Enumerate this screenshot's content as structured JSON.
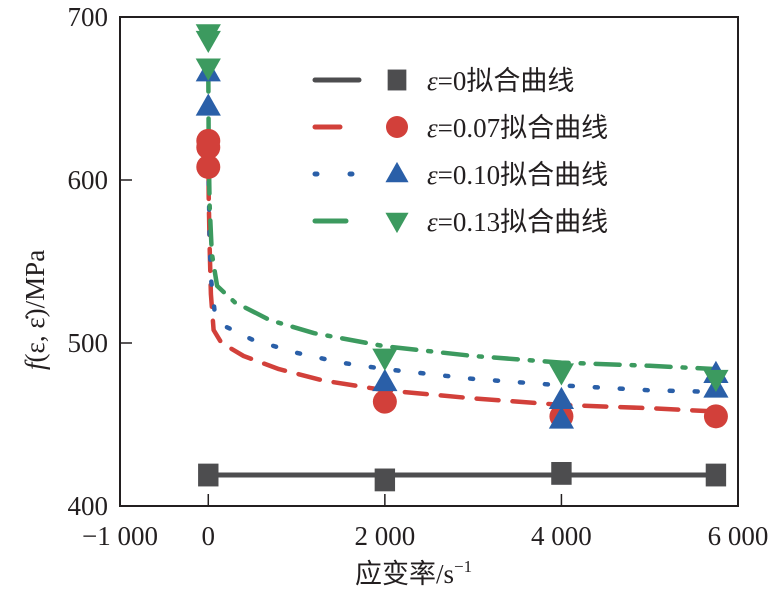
{
  "chart_data": {
    "type": "line",
    "title": "",
    "xlabel": "应变率/s",
    "xlabel_superscript": "−1",
    "ylabel_prefix": "f",
    "ylabel": "(ε, ε̇)/MPa",
    "xlim": [
      -1000,
      6000
    ],
    "ylim": [
      400,
      700
    ],
    "grid": false,
    "legend_position": "top-right",
    "x_ticks": [
      -1000,
      0,
      2000,
      4000,
      6000
    ],
    "x_tick_labels": [
      "−1 000",
      "0",
      "2 000",
      "4 000",
      "6 000"
    ],
    "y_ticks": [
      400,
      500,
      600,
      700
    ],
    "y_tick_labels": [
      "400",
      "500",
      "600",
      "700"
    ],
    "series": [
      {
        "name": "ε=0拟合曲线",
        "legend_label": "ε=0拟合曲线",
        "color": "#4d4d4f",
        "marker": "square",
        "line_style": "solid",
        "points": [
          [
            0,
            419
          ],
          [
            2000,
            416
          ],
          [
            4000,
            420
          ],
          [
            5750,
            419
          ]
        ],
        "fit": [
          [
            0,
            419
          ],
          [
            5750,
            419
          ]
        ]
      },
      {
        "name": "ε=0.07拟合曲线",
        "legend_label": "ε=0.07拟合曲线",
        "color": "#d2403a",
        "marker": "circle",
        "line_style": "dashed",
        "points": [
          [
            0,
            624
          ],
          [
            0,
            620
          ],
          [
            0,
            608
          ],
          [
            2000,
            464
          ],
          [
            4000,
            455
          ],
          [
            5750,
            455
          ]
        ],
        "fit": [
          [
            0,
            624
          ],
          [
            5,
            590
          ],
          [
            15,
            560
          ],
          [
            30,
            530
          ],
          [
            60,
            508
          ],
          [
            150,
            500
          ],
          [
            400,
            492
          ],
          [
            800,
            484
          ],
          [
            1300,
            477
          ],
          [
            2000,
            471
          ],
          [
            3000,
            466
          ],
          [
            4000,
            462
          ],
          [
            5000,
            460
          ],
          [
            5750,
            458
          ]
        ]
      },
      {
        "name": "ε=0.10拟合曲线",
        "legend_label": "ε=0.10拟合曲线",
        "color": "#2a5fa8",
        "marker": "triangle-up",
        "line_style": "dotted",
        "points": [
          [
            0,
            666
          ],
          [
            0,
            645
          ],
          [
            2000,
            476
          ],
          [
            4000,
            465
          ],
          [
            4000,
            453
          ],
          [
            5750,
            472
          ],
          [
            5750,
            481
          ]
        ],
        "fit": [
          [
            0,
            645
          ],
          [
            5,
            600
          ],
          [
            15,
            565
          ],
          [
            30,
            540
          ],
          [
            70,
            520
          ],
          [
            200,
            510
          ],
          [
            500,
            502
          ],
          [
            1000,
            494
          ],
          [
            1500,
            488
          ],
          [
            2000,
            484
          ],
          [
            3000,
            478
          ],
          [
            4000,
            474
          ],
          [
            5000,
            471
          ],
          [
            5750,
            470
          ]
        ]
      },
      {
        "name": "ε=0.13拟合曲线",
        "legend_label": "ε=0.13拟合曲线",
        "color": "#3c9a5f",
        "marker": "triangle-down",
        "line_style": "dashdot",
        "points": [
          [
            0,
            690
          ],
          [
            0,
            686
          ],
          [
            0,
            669
          ],
          [
            2000,
            491
          ],
          [
            4000,
            482
          ],
          [
            5750,
            478
          ]
        ],
        "fit": [
          [
            0,
            669
          ],
          [
            5,
            620
          ],
          [
            15,
            585
          ],
          [
            40,
            555
          ],
          [
            100,
            535
          ],
          [
            300,
            525
          ],
          [
            700,
            514
          ],
          [
            1200,
            506
          ],
          [
            2000,
            498
          ],
          [
            3000,
            492
          ],
          [
            4000,
            488
          ],
          [
            5000,
            486
          ],
          [
            5750,
            484
          ]
        ]
      }
    ]
  }
}
